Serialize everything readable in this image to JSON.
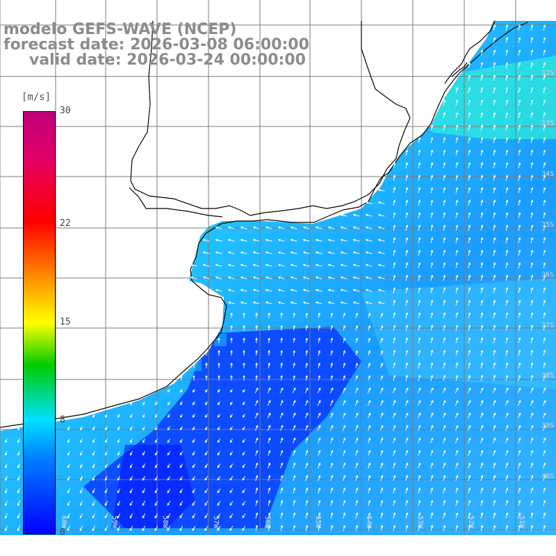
{
  "titles": {
    "line1": "modelo GEFS-WAVE (NCEP)",
    "line2": "forecast date: 2026-03-08 06:00:00",
    "line3": "valid date: 2026-03-24 00:00:00"
  },
  "colorbar": {
    "unit": "[m/s]",
    "ticks": [
      {
        "value": 30,
        "label": "30"
      },
      {
        "value": 22,
        "label": "22"
      },
      {
        "value": 15,
        "label": "15"
      },
      {
        "value": 8,
        "label": "8"
      },
      {
        "value": 0,
        "label": "0"
      }
    ]
  },
  "latitude_labels": [
    "32S",
    "33S",
    "34S",
    "35S",
    "36S",
    "37S",
    "38S",
    "39S",
    "40S"
  ],
  "longitude_labels": [
    "60W",
    "59W",
    "58W",
    "57W",
    "56W",
    "55W",
    "54W",
    "53W",
    "52W",
    "51W"
  ],
  "colors": {
    "ocean_light": "#2ad8f8",
    "ocean_mid": "#1a9cff",
    "ocean_dark": "#0a3aff",
    "coast": "#000000",
    "grid": "#7a7a7a",
    "arrows": "#ffffff"
  }
}
